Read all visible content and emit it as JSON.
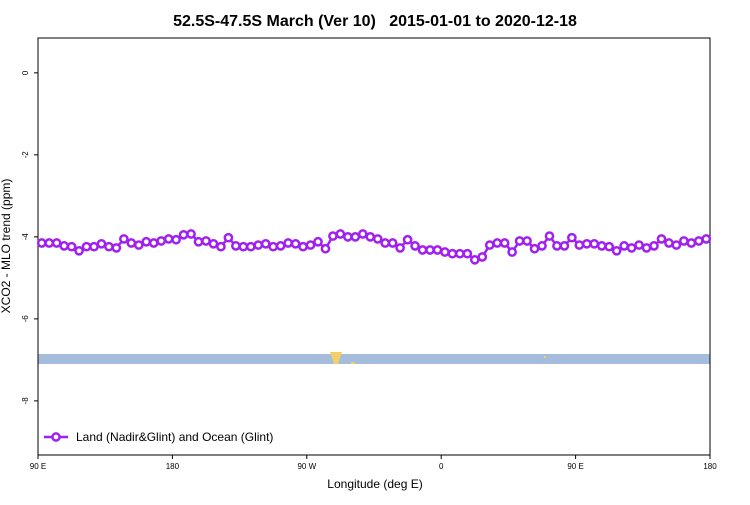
{
  "chart_data": {
    "type": "line",
    "title": "52.5S-47.5S March (Ver 10)   2015-01-01 to 2020-12-18",
    "x_label": "Longitude (deg E)",
    "y_label": "XCO2 - MLO trend (ppm)",
    "xlim": [
      90,
      540
    ],
    "ylim": [
      -9.32,
      0.85
    ],
    "xticks": [
      {
        "value": 90,
        "label": "90 E"
      },
      {
        "value": 180,
        "label": "180"
      },
      {
        "value": 270,
        "label": "90 W"
      },
      {
        "value": 360,
        "label": "0"
      },
      {
        "value": 450,
        "label": "90 E"
      },
      {
        "value": 540,
        "label": "180"
      }
    ],
    "yticks": [
      0,
      -2,
      -4,
      -6,
      -8
    ],
    "legend": "bottom-left",
    "series": [
      {
        "name": "Land (Nadir&Glint) and Ocean (Glint)",
        "color": "#a020f0",
        "x": [
          92.5,
          97.5,
          102.5,
          107.5,
          112.5,
          117.5,
          122.5,
          127.5,
          132.5,
          137.5,
          142.5,
          147.5,
          152.5,
          157.5,
          162.5,
          167.5,
          172.5,
          177.5,
          182.5,
          187.5,
          192.5,
          197.5,
          202.5,
          207.5,
          212.5,
          217.5,
          222.5,
          227.5,
          232.5,
          237.5,
          242.5,
          247.5,
          252.5,
          257.5,
          262.5,
          267.5,
          272.5,
          277.5,
          282.5,
          287.5,
          292.5,
          297.5,
          302.5,
          307.5,
          312.5,
          317.5,
          322.5,
          327.5,
          332.5,
          337.5,
          342.5,
          347.5,
          352.5,
          357.5,
          362.5,
          367.5,
          372.5,
          377.5,
          382.5,
          387.5,
          392.5,
          397.5,
          402.5,
          407.5,
          412.5,
          417.5,
          422.5,
          427.5,
          432.5,
          437.5,
          442.5,
          447.5,
          452.5,
          457.5,
          462.5,
          467.5,
          472.5,
          477.5,
          482.5,
          487.5,
          492.5,
          497.5,
          502.5,
          507.5,
          512.5,
          517.5,
          522.5,
          527.5,
          532.5,
          537.5
        ],
        "values": [
          -4.15,
          -4.15,
          -4.15,
          -4.22,
          -4.24,
          -4.34,
          -4.24,
          -4.24,
          -4.17,
          -4.24,
          -4.27,
          -4.05,
          -4.15,
          -4.2,
          -4.12,
          -4.15,
          -4.1,
          -4.05,
          -4.07,
          -3.95,
          -3.93,
          -4.12,
          -4.1,
          -4.17,
          -4.24,
          -4.02,
          -4.22,
          -4.24,
          -4.24,
          -4.2,
          -4.17,
          -4.24,
          -4.22,
          -4.15,
          -4.17,
          -4.24,
          -4.2,
          -4.12,
          -4.29,
          -3.98,
          -3.93,
          -4.0,
          -4.0,
          -3.93,
          -4.0,
          -4.05,
          -4.15,
          -4.15,
          -4.27,
          -4.07,
          -4.22,
          -4.32,
          -4.32,
          -4.32,
          -4.37,
          -4.41,
          -4.41,
          -4.41,
          -4.56,
          -4.49,
          -4.2,
          -4.15,
          -4.15,
          -4.37,
          -4.1,
          -4.1,
          -4.29,
          -4.22,
          -3.98,
          -4.22,
          -4.22,
          -4.02,
          -4.2,
          -4.17,
          -4.17,
          -4.22,
          -4.24,
          -4.34,
          -4.22,
          -4.27,
          -4.2,
          -4.27,
          -4.22,
          -4.05,
          -4.15,
          -4.2,
          -4.1,
          -4.15,
          -4.1,
          -4.05
        ]
      }
    ]
  }
}
